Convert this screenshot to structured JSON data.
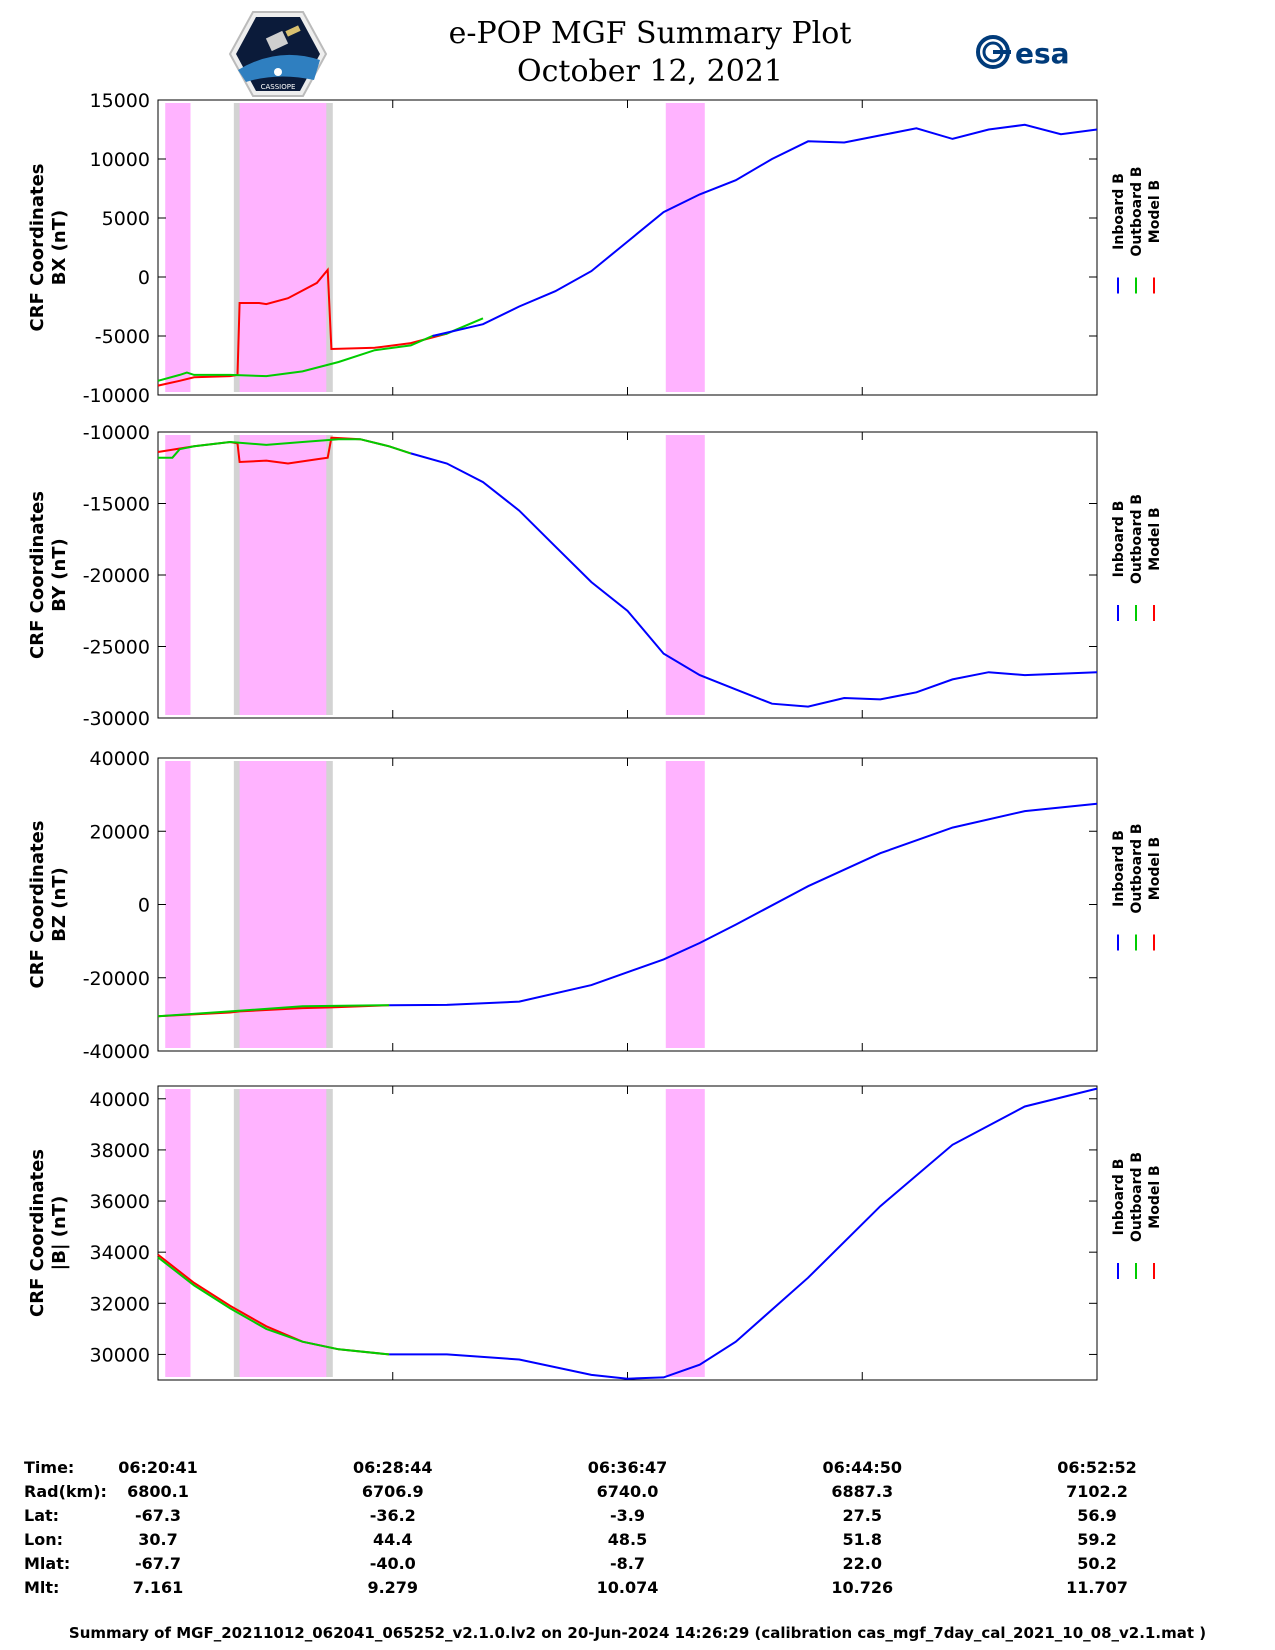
{
  "header": {
    "title": "e-POP MGF Summary Plot",
    "subtitle": "October 12, 2021",
    "logo_left": "CASSIOPE",
    "logo_right": "esa"
  },
  "colors": {
    "inboard": "#0000ff",
    "outboard": "#00cc00",
    "model": "#ff0000",
    "highlight": "#ffb3ff",
    "shade": "#d3d3d3"
  },
  "chart_data": [
    {
      "type": "line",
      "ylabel_line1": "CRF Coordinates",
      "ylabel_line2": "BX (nT)",
      "ylim": [
        -10000,
        15000
      ],
      "yticks": [
        15000,
        10000,
        5000,
        0,
        -5000,
        -10000
      ],
      "ytick_labels": [
        "15000",
        "10000",
        "5000",
        "0",
        "-5000",
        "-10000"
      ],
      "legend": [
        "Inboard B",
        "Outboard B",
        "Model B"
      ],
      "series": [
        {
          "name": "Inboard B",
          "points": [
            [
              38,
              -5000
            ],
            [
              45,
              -4000
            ],
            [
              50,
              -2500
            ],
            [
              55,
              -1200
            ],
            [
              60,
              500
            ],
            [
              65,
              3000
            ],
            [
              70,
              5500
            ],
            [
              75,
              7000
            ],
            [
              80,
              8200
            ],
            [
              85,
              10000
            ],
            [
              90,
              11500
            ],
            [
              95,
              11400
            ],
            [
              100,
              12000
            ],
            [
              105,
              12600
            ],
            [
              110,
              11700
            ],
            [
              115,
              12500
            ],
            [
              120,
              12900
            ],
            [
              125,
              12100
            ],
            [
              130,
              12500
            ]
          ]
        },
        {
          "name": "Outboard B",
          "points": [
            [
              0,
              -8800
            ],
            [
              3,
              -8300
            ],
            [
              4,
              -8100
            ],
            [
              5,
              -8300
            ],
            [
              10,
              -8300
            ],
            [
              15,
              -8400
            ],
            [
              20,
              -8000
            ],
            [
              25,
              -7200
            ],
            [
              30,
              -6200
            ],
            [
              35,
              -5800
            ],
            [
              38,
              -5000
            ],
            [
              40,
              -4800
            ],
            [
              45,
              -3500
            ]
          ]
        },
        {
          "name": "Model B",
          "points": [
            [
              0,
              -9200
            ],
            [
              3,
              -8800
            ],
            [
              5,
              -8500
            ],
            [
              10,
              -8400
            ],
            [
              11,
              -8300
            ],
            [
              11.3,
              -2200
            ],
            [
              14,
              -2200
            ],
            [
              15,
              -2300
            ],
            [
              18,
              -1800
            ],
            [
              22,
              -500
            ],
            [
              23.5,
              600
            ],
            [
              24,
              -6100
            ],
            [
              30,
              -6000
            ],
            [
              35,
              -5600
            ],
            [
              40,
              -4800
            ]
          ]
        }
      ]
    },
    {
      "type": "line",
      "ylabel_line1": "CRF Coordinates",
      "ylabel_line2": "BY (nT)",
      "ylim": [
        -30000,
        -10000
      ],
      "yticks": [
        -10000,
        -15000,
        -20000,
        -25000,
        -30000
      ],
      "ytick_labels": [
        "-10000",
        "-15000",
        "-20000",
        "-25000",
        "-30000"
      ],
      "legend": [
        "Inboard B",
        "Outboard B",
        "Model B"
      ],
      "series": [
        {
          "name": "Inboard B",
          "points": [
            [
              35,
              -11500
            ],
            [
              40,
              -12200
            ],
            [
              45,
              -13500
            ],
            [
              50,
              -15500
            ],
            [
              55,
              -18000
            ],
            [
              60,
              -20500
            ],
            [
              65,
              -22500
            ],
            [
              70,
              -25500
            ],
            [
              75,
              -27000
            ],
            [
              80,
              -28000
            ],
            [
              85,
              -29000
            ],
            [
              90,
              -29200
            ],
            [
              95,
              -28600
            ],
            [
              100,
              -28700
            ],
            [
              105,
              -28200
            ],
            [
              110,
              -27300
            ],
            [
              115,
              -26800
            ],
            [
              120,
              -27000
            ],
            [
              130,
              -26800
            ]
          ]
        },
        {
          "name": "Outboard B",
          "points": [
            [
              0,
              -11800
            ],
            [
              2,
              -11800
            ],
            [
              3,
              -11200
            ],
            [
              5,
              -11000
            ],
            [
              10,
              -10700
            ],
            [
              15,
              -10900
            ],
            [
              20,
              -10700
            ],
            [
              25,
              -10500
            ],
            [
              28,
              -10500
            ],
            [
              32,
              -11000
            ],
            [
              35,
              -11500
            ]
          ]
        },
        {
          "name": "Model B",
          "points": [
            [
              0,
              -11400
            ],
            [
              5,
              -11000
            ],
            [
              10,
              -10700
            ],
            [
              11,
              -10800
            ],
            [
              11.3,
              -12100
            ],
            [
              15,
              -12000
            ],
            [
              18,
              -12200
            ],
            [
              22,
              -11900
            ],
            [
              23.5,
              -11800
            ],
            [
              24,
              -10400
            ],
            [
              28,
              -10500
            ],
            [
              32,
              -11000
            ],
            [
              35,
              -11500
            ]
          ]
        }
      ]
    },
    {
      "type": "line",
      "ylabel_line1": "CRF Coordinates",
      "ylabel_line2": "BZ (nT)",
      "ylim": [
        -40000,
        40000
      ],
      "yticks": [
        40000,
        20000,
        0,
        -20000,
        -40000
      ],
      "ytick_labels": [
        "40000",
        "20000",
        "0",
        "-20000",
        "-40000"
      ],
      "legend": [
        "Inboard B",
        "Outboard B",
        "Model B"
      ],
      "series": [
        {
          "name": "Inboard B",
          "points": [
            [
              32,
              -27500
            ],
            [
              40,
              -27400
            ],
            [
              50,
              -26500
            ],
            [
              60,
              -22000
            ],
            [
              70,
              -15000
            ],
            [
              75,
              -10500
            ],
            [
              80,
              -5500
            ],
            [
              90,
              5000
            ],
            [
              100,
              14000
            ],
            [
              110,
              21000
            ],
            [
              120,
              25500
            ],
            [
              130,
              27500
            ]
          ]
        },
        {
          "name": "Outboard B",
          "points": [
            [
              0,
              -30500
            ],
            [
              10,
              -29200
            ],
            [
              20,
              -27800
            ],
            [
              32,
              -27500
            ]
          ]
        },
        {
          "name": "Model B",
          "points": [
            [
              0,
              -30500
            ],
            [
              10,
              -29500
            ],
            [
              11.3,
              -29200
            ],
            [
              20,
              -28300
            ],
            [
              24,
              -28100
            ],
            [
              32,
              -27500
            ]
          ]
        }
      ]
    },
    {
      "type": "line",
      "ylabel_line1": "CRF Coordinates",
      "ylabel_line2": "|B| (nT)",
      "ylim": [
        29000,
        40500
      ],
      "yticks": [
        40000,
        38000,
        36000,
        34000,
        32000,
        30000
      ],
      "ytick_labels": [
        "40000",
        "38000",
        "36000",
        "34000",
        "32000",
        "30000"
      ],
      "legend": [
        "Inboard B",
        "Outboard B",
        "Model B"
      ],
      "series": [
        {
          "name": "Inboard B",
          "points": [
            [
              32,
              30000
            ],
            [
              40,
              30000
            ],
            [
              50,
              29800
            ],
            [
              60,
              29200
            ],
            [
              65,
              29050
            ],
            [
              70,
              29100
            ],
            [
              75,
              29600
            ],
            [
              80,
              30500
            ],
            [
              90,
              33000
            ],
            [
              100,
              35800
            ],
            [
              110,
              38200
            ],
            [
              120,
              39700
            ],
            [
              130,
              40400
            ]
          ]
        },
        {
          "name": "Outboard B",
          "points": [
            [
              0,
              33800
            ],
            [
              5,
              32700
            ],
            [
              10,
              31800
            ],
            [
              15,
              31000
            ],
            [
              20,
              30500
            ],
            [
              25,
              30200
            ],
            [
              32,
              30000
            ]
          ]
        },
        {
          "name": "Model B",
          "points": [
            [
              0,
              33900
            ],
            [
              5,
              32800
            ],
            [
              10,
              31900
            ],
            [
              15,
              31100
            ],
            [
              20,
              30500
            ],
            [
              25,
              30200
            ],
            [
              32,
              30000
            ]
          ]
        }
      ]
    }
  ],
  "time_axis": {
    "xlim": [
      0,
      130
    ],
    "tick_minutes": [
      0,
      32.5,
      65,
      97.5,
      130
    ],
    "shaded_regions": [
      {
        "kind": "highlight",
        "range": [
          1,
          4.5
        ]
      },
      {
        "kind": "shade",
        "range": [
          10.5,
          24.2
        ]
      },
      {
        "kind": "highlight",
        "range": [
          11.3,
          23.3
        ]
      },
      {
        "kind": "highlight",
        "range": [
          70.3,
          75.7
        ]
      }
    ]
  },
  "footer": {
    "labels": [
      "Time:",
      "Rad(km):",
      "Lat:",
      "Lon:",
      "Mlat:",
      "Mlt:"
    ],
    "columns": [
      [
        "06:20:41",
        "6800.1",
        "-67.3",
        "30.7",
        "-67.7",
        "7.161"
      ],
      [
        "06:28:44",
        "6706.9",
        "-36.2",
        "44.4",
        "-40.0",
        "9.279"
      ],
      [
        "06:36:47",
        "6740.0",
        "-3.9",
        "48.5",
        "-8.7",
        "10.074"
      ],
      [
        "06:44:50",
        "6887.3",
        "27.5",
        "51.8",
        "22.0",
        "10.726"
      ],
      [
        "06:52:52",
        "7102.2",
        "56.9",
        "59.2",
        "50.2",
        "11.707"
      ]
    ],
    "caption": "Summary of MGF_20211012_062041_065252_v2.1.0.lv2 on 20-Jun-2024 14:26:29 (calibration cas_mgf_7day_cal_2021_10_08_v2.1.mat )"
  }
}
